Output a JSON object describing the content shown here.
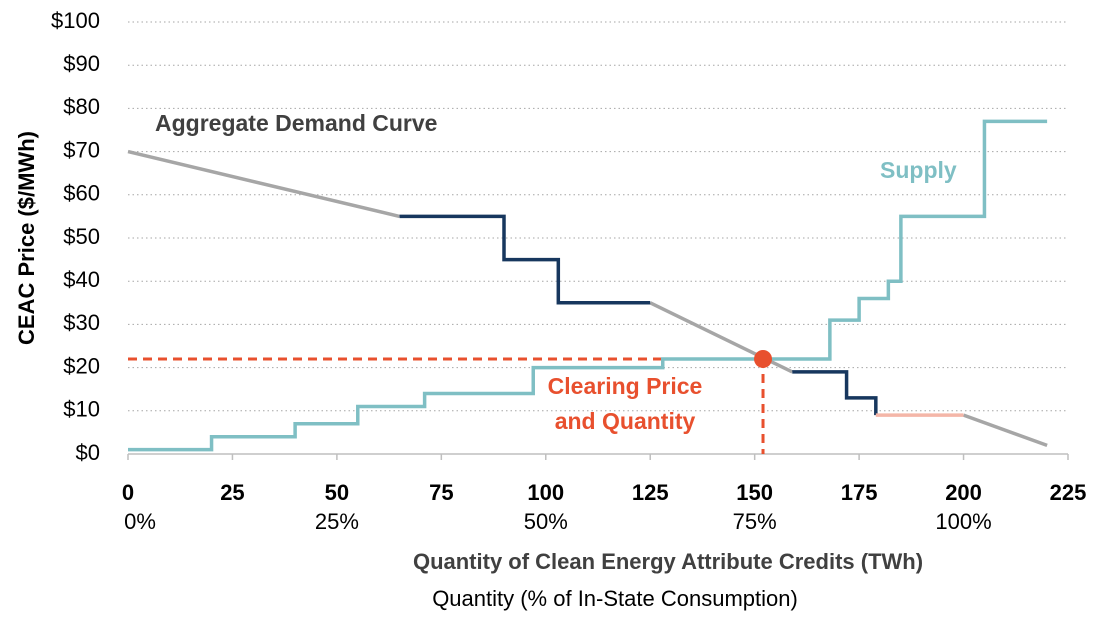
{
  "chart_data": {
    "type": "line",
    "ylabel": "CEAC Price ($/MWh)",
    "xlabel": "Quantity of Clean Energy Attribute Credits (TWh)",
    "x2label": "Quantity (% of In-State Consumption)",
    "xlim": [
      0,
      225
    ],
    "xticks": [
      0,
      25,
      50,
      75,
      100,
      125,
      150,
      175,
      200,
      225
    ],
    "x2ticks": [
      {
        "value": 0,
        "label": "0%"
      },
      {
        "value": 50,
        "label": "25%"
      },
      {
        "value": 100,
        "label": "50%"
      },
      {
        "value": 150,
        "label": "75%"
      },
      {
        "value": 200,
        "label": "100%"
      }
    ],
    "ylim": [
      0,
      100
    ],
    "yticks": [
      {
        "value": 0,
        "label": "$0"
      },
      {
        "value": 10,
        "label": "$10"
      },
      {
        "value": 20,
        "label": "$20"
      },
      {
        "value": 30,
        "label": "$30"
      },
      {
        "value": 40,
        "label": "$40"
      },
      {
        "value": 50,
        "label": "$50"
      },
      {
        "value": 60,
        "label": "$60"
      },
      {
        "value": 70,
        "label": "$70"
      },
      {
        "value": 80,
        "label": "$80"
      },
      {
        "value": 90,
        "label": "$90"
      },
      {
        "value": 100,
        "label": "$100"
      }
    ],
    "grid": true,
    "series": [
      {
        "name": "Aggregate Demand Curve",
        "color": "#a6a6a6",
        "x": [
          0,
          65,
          null,
          125,
          159,
          null,
          200,
          220
        ],
        "values": [
          70,
          55,
          null,
          35,
          19,
          null,
          9,
          2
        ]
      },
      {
        "color": "#17375e",
        "x": [
          65,
          90,
          90,
          103,
          103,
          125,
          null,
          159,
          172,
          172,
          179,
          179
        ],
        "values": [
          55,
          55,
          45,
          45,
          35,
          35,
          null,
          19,
          19,
          13,
          13,
          9
        ]
      },
      {
        "color": "#f4b6a8",
        "x": [
          179,
          200
        ],
        "values": [
          9,
          9
        ]
      },
      {
        "name": "Supply",
        "color": "#7fbfc4",
        "x": [
          0,
          20,
          20,
          40,
          40,
          55,
          55,
          71,
          71,
          97,
          97,
          128,
          128,
          168,
          168,
          175,
          175,
          182,
          182,
          185,
          185,
          205,
          205,
          220
        ],
        "values": [
          1,
          1,
          4,
          4,
          7,
          7,
          11,
          11,
          14,
          14,
          20,
          20,
          22,
          22,
          31,
          31,
          36,
          36,
          40,
          40,
          55,
          55,
          77,
          77
        ]
      }
    ],
    "clearing_point": {
      "label": [
        "Clearing Price",
        "and Quantity"
      ],
      "x": 152,
      "y": 22,
      "color": "#e8502e"
    }
  }
}
